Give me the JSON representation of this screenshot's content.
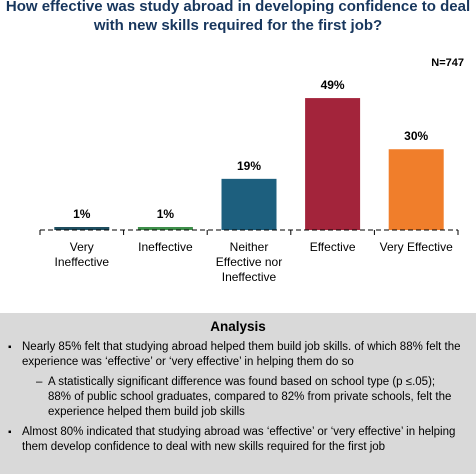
{
  "chart_data": {
    "type": "bar",
    "title": "How effective was study abroad in developing confidence to deal with new skills required for the first job?",
    "sample_size": "N=747",
    "categories": [
      [
        "Very",
        "Ineffective"
      ],
      [
        "Ineffective"
      ],
      [
        "Neither",
        "Effective nor",
        "Ineffective"
      ],
      [
        "Effective"
      ],
      [
        "Very Effective"
      ]
    ],
    "values": [
      1,
      1,
      19,
      49,
      30
    ],
    "value_labels": [
      "1%",
      "1%",
      "19%",
      "49%",
      "30%"
    ],
    "colors": [
      "#1f4e5f",
      "#3e8f4a",
      "#1d5f7e",
      "#a3243b",
      "#f07e2b"
    ],
    "ylim": [
      0,
      52
    ],
    "grid": false,
    "legend": false
  },
  "analysis": {
    "title": "Analysis",
    "bullet1": "Nearly 85% felt that studying abroad helped them build job skills. of which 88% felt the experience was ‘effective’ or ‘very effective’ in helping them do so",
    "sub_mark": "–",
    "sub1": "A statistically significant difference was found based on school type (p ≤.05); 88% of public school graduates, compared to 82% from private schools, felt the experience helped them build job skills",
    "bullet2": "Almost 80% indicated that studying abroad was ‘effective’ or ‘very effective’ in helping them develop confidence to deal with new skills required for the first job",
    "bullet_mark": "▪"
  }
}
